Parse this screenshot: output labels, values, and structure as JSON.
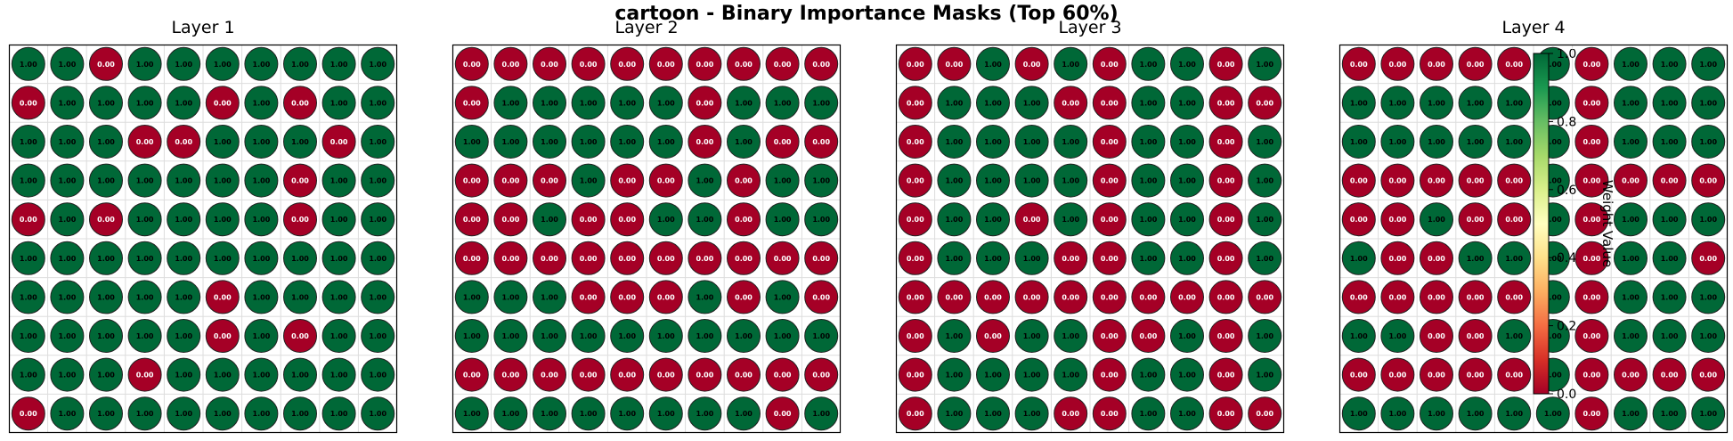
{
  "figure": {
    "suptitle": "cartoon - Binary Importance Masks (Top 60%)",
    "colormap": "RdYlGn",
    "high_color": "#006837",
    "low_color": "#a50026",
    "value_format": "0.00"
  },
  "chart_data": [
    {
      "type": "heatmap",
      "title": "Layer 1",
      "values": [
        [
          1,
          1,
          0,
          1,
          1,
          1,
          1,
          1,
          1,
          1
        ],
        [
          0,
          1,
          1,
          1,
          1,
          0,
          1,
          0,
          1,
          1
        ],
        [
          1,
          1,
          1,
          0,
          0,
          1,
          1,
          1,
          0,
          1
        ],
        [
          1,
          1,
          1,
          1,
          1,
          1,
          1,
          0,
          1,
          1
        ],
        [
          0,
          1,
          0,
          1,
          1,
          1,
          1,
          0,
          1,
          1
        ],
        [
          1,
          1,
          1,
          1,
          1,
          1,
          1,
          1,
          1,
          1
        ],
        [
          1,
          1,
          1,
          1,
          1,
          0,
          1,
          1,
          1,
          1
        ],
        [
          1,
          1,
          1,
          1,
          1,
          0,
          1,
          0,
          1,
          1
        ],
        [
          1,
          1,
          1,
          0,
          1,
          1,
          1,
          1,
          1,
          1
        ],
        [
          0,
          1,
          1,
          1,
          1,
          1,
          1,
          1,
          1,
          1
        ]
      ]
    },
    {
      "type": "heatmap",
      "title": "Layer 2",
      "values": [
        [
          0,
          0,
          0,
          0,
          0,
          0,
          0,
          0,
          0,
          0
        ],
        [
          0,
          1,
          1,
          1,
          1,
          1,
          0,
          1,
          1,
          1
        ],
        [
          1,
          1,
          1,
          1,
          1,
          1,
          0,
          1,
          0,
          0
        ],
        [
          0,
          0,
          0,
          1,
          0,
          0,
          1,
          0,
          1,
          1
        ],
        [
          0,
          0,
          1,
          0,
          0,
          1,
          1,
          0,
          1,
          1
        ],
        [
          0,
          0,
          0,
          0,
          0,
          0,
          0,
          0,
          0,
          0
        ],
        [
          1,
          1,
          1,
          0,
          0,
          0,
          1,
          0,
          1,
          0
        ],
        [
          1,
          1,
          1,
          1,
          1,
          1,
          1,
          1,
          1,
          1
        ],
        [
          0,
          0,
          0,
          0,
          0,
          0,
          0,
          0,
          0,
          0
        ],
        [
          1,
          1,
          1,
          1,
          1,
          1,
          1,
          1,
          0,
          1
        ]
      ]
    },
    {
      "type": "heatmap",
      "title": "Layer 3",
      "values": [
        [
          0,
          0,
          1,
          0,
          1,
          0,
          1,
          1,
          0,
          1
        ],
        [
          0,
          1,
          1,
          1,
          0,
          0,
          1,
          1,
          0,
          0
        ],
        [
          0,
          1,
          1,
          1,
          1,
          0,
          1,
          1,
          0,
          1
        ],
        [
          0,
          1,
          1,
          1,
          1,
          0,
          1,
          1,
          0,
          1
        ],
        [
          0,
          1,
          1,
          0,
          1,
          0,
          1,
          1,
          0,
          1
        ],
        [
          0,
          1,
          1,
          1,
          0,
          0,
          1,
          1,
          0,
          1
        ],
        [
          0,
          0,
          0,
          0,
          0,
          0,
          0,
          0,
          0,
          0
        ],
        [
          0,
          1,
          0,
          1,
          1,
          0,
          0,
          1,
          0,
          1
        ],
        [
          0,
          1,
          1,
          1,
          1,
          0,
          1,
          1,
          0,
          1
        ],
        [
          0,
          1,
          1,
          1,
          0,
          0,
          1,
          1,
          0,
          0
        ]
      ]
    },
    {
      "type": "heatmap",
      "title": "Layer 4",
      "values": [
        [
          0,
          0,
          0,
          0,
          0,
          1,
          0,
          1,
          1,
          1
        ],
        [
          1,
          1,
          1,
          1,
          1,
          1,
          0,
          1,
          1,
          1
        ],
        [
          1,
          1,
          1,
          1,
          1,
          1,
          0,
          1,
          1,
          1
        ],
        [
          0,
          0,
          0,
          0,
          0,
          1,
          0,
          0,
          0,
          0
        ],
        [
          0,
          0,
          1,
          0,
          0,
          1,
          0,
          1,
          1,
          1
        ],
        [
          1,
          0,
          0,
          1,
          1,
          1,
          0,
          1,
          1,
          0
        ],
        [
          0,
          0,
          0,
          0,
          0,
          1,
          0,
          1,
          1,
          1
        ],
        [
          1,
          1,
          0,
          0,
          1,
          1,
          0,
          1,
          1,
          1
        ],
        [
          0,
          0,
          0,
          0,
          0,
          1,
          0,
          0,
          0,
          0
        ],
        [
          1,
          1,
          1,
          1,
          1,
          1,
          0,
          1,
          1,
          1
        ]
      ]
    }
  ],
  "colorbar": {
    "label": "Weight Value",
    "range": [
      0.0,
      1.0
    ],
    "ticks": [
      "0.0",
      "0.2",
      "0.4",
      "0.6",
      "0.8",
      "1.0"
    ]
  }
}
